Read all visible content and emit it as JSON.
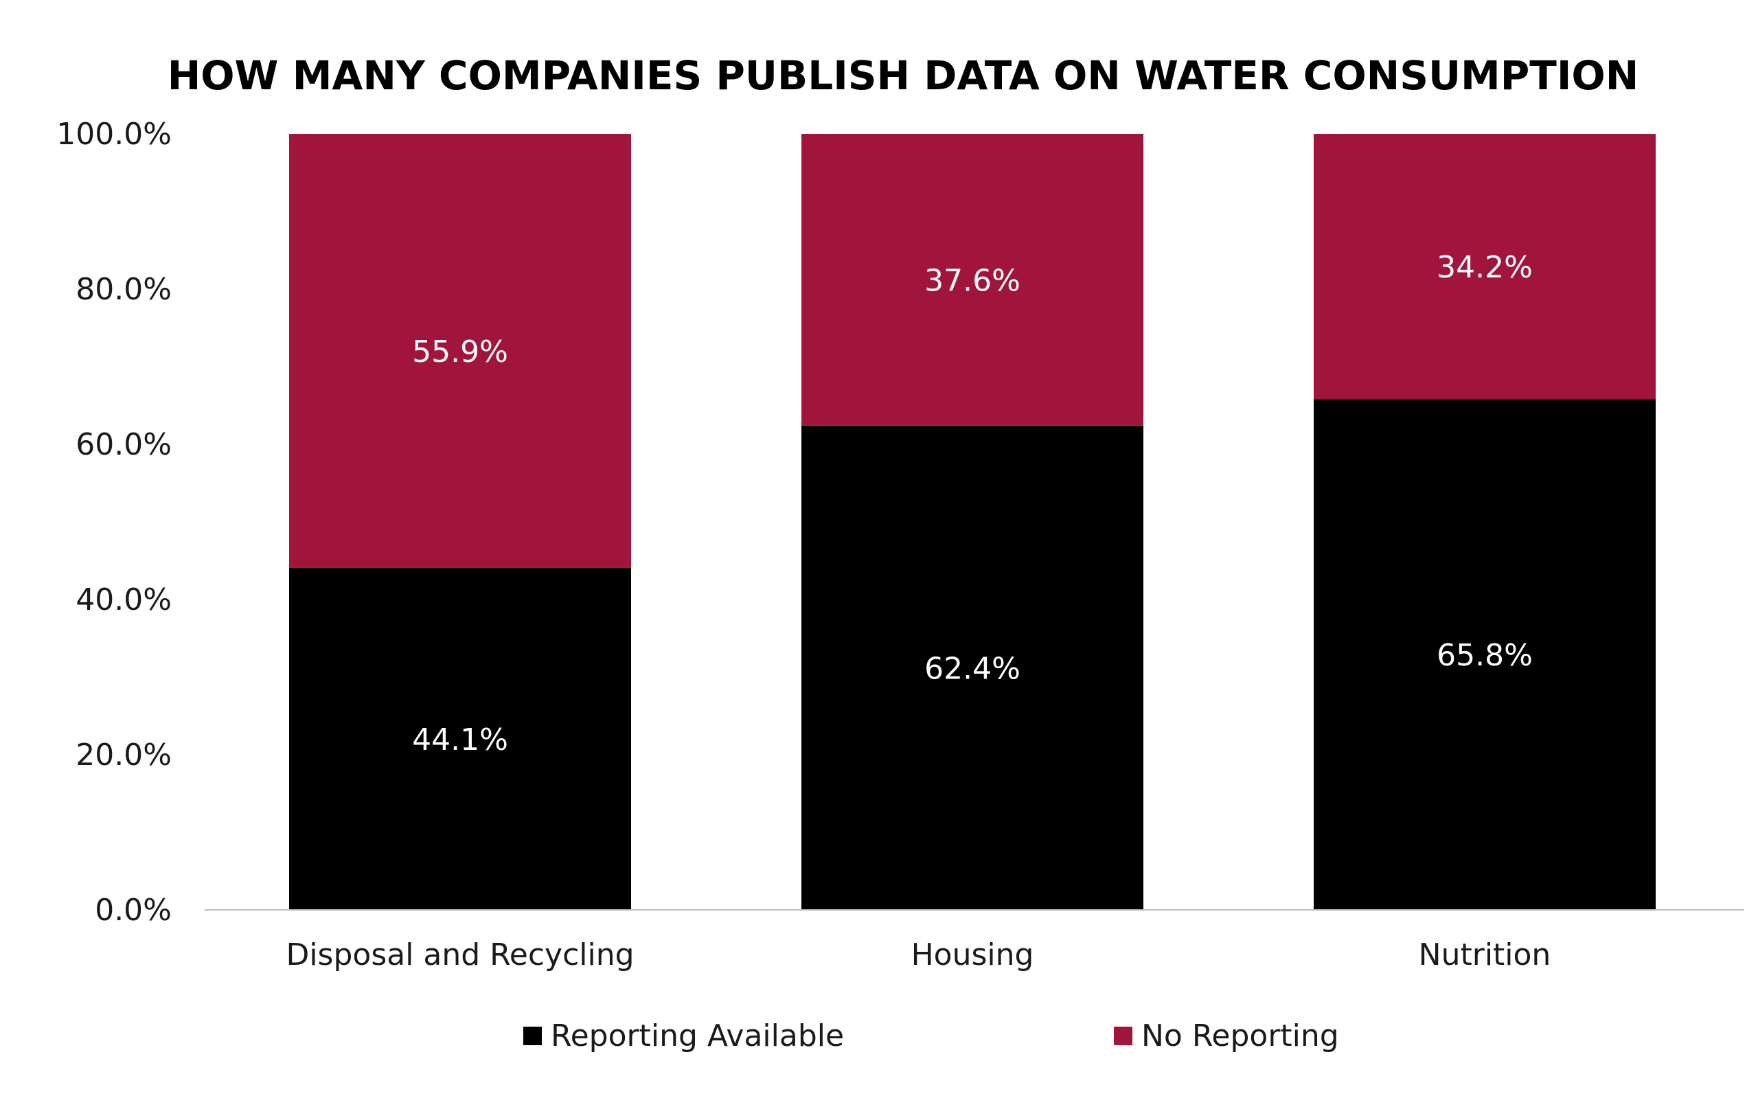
{
  "chart_data": {
    "type": "bar",
    "stacked": true,
    "title": "HOW MANY COMPANIES PUBLISH DATA ON WATER CONSUMPTION",
    "xlabel": "",
    "ylabel": "",
    "categories": [
      "Disposal and Recycling",
      "Housing",
      "Nutrition"
    ],
    "series": [
      {
        "name": "Reporting Available",
        "color": "#000000",
        "values": [
          44.1,
          62.4,
          65.8
        ],
        "labels": [
          "44.1%",
          "62.4%",
          "65.8%"
        ]
      },
      {
        "name": "No Reporting",
        "color": "#a1143c",
        "values": [
          55.9,
          37.6,
          34.2
        ],
        "labels": [
          "55.9%",
          "37.6%",
          "34.2%"
        ]
      }
    ],
    "ylim": [
      0,
      100
    ],
    "yticks": [
      0,
      20,
      40,
      60,
      80,
      100
    ],
    "ytick_labels": [
      "0.0%",
      "20.0%",
      "40.0%",
      "60.0%",
      "80.0%",
      "100.0%"
    ],
    "grid": false,
    "legend_position": "bottom-center",
    "axis_color": "#bfbfbf"
  }
}
